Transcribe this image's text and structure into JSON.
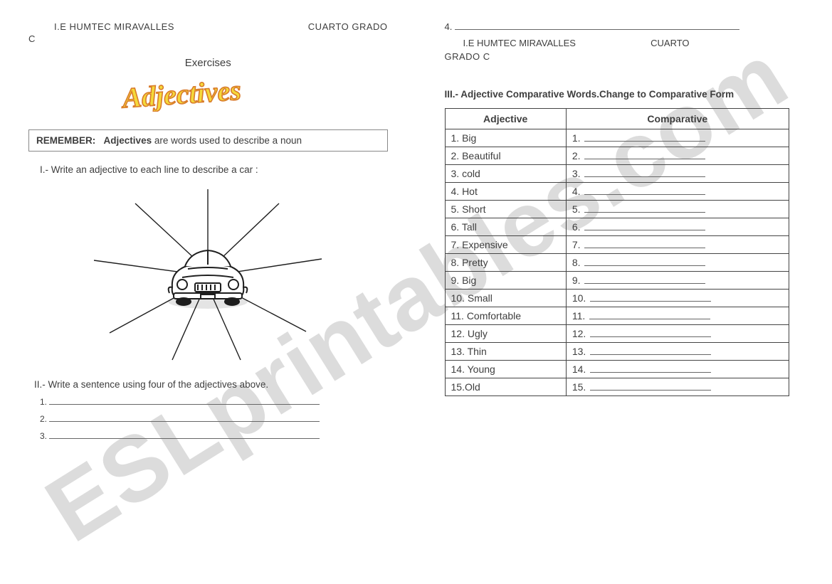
{
  "watermark_text": "ESLprintables.com",
  "left": {
    "header_school": "I.E HUMTEC MIRAVALLES",
    "header_grade": "CUARTO GRADO",
    "header_suffix": "C",
    "exercises_label": "Exercises",
    "wordart_text": "Adjectives",
    "wordart_fill": "#f4d93a",
    "wordart_stroke": "#d97b2b",
    "remember_label": "REMEMBER:",
    "remember_bold": "Adjectives",
    "remember_rest": " are words used to describe a noun",
    "section1_prompt": "I.- Write  an adjective  to each line to describe a car :",
    "section2_prompt": "II.- Write a sentence using four of the adjectives above.",
    "sentence_numbers": [
      "1.",
      "2.",
      "3."
    ],
    "car": {
      "body_stroke": "#1e1e1e",
      "body_fill": "#ffffff",
      "line_stroke": "#1e1e1e"
    }
  },
  "right": {
    "top_number": "4.",
    "header_school": "I.E HUMTEC MIRAVALLES",
    "header_grade": "CUARTO",
    "header_grade2": "GRADO C",
    "section3_title": "III.- Adjective Comparative Words.Change to Comparative Form",
    "table_headers": [
      "Adjective",
      "Comparative"
    ],
    "adjectives": [
      "1. Big",
      "2. Beautiful",
      "3. cold",
      "4. Hot",
      "5. Short",
      "6. Tall",
      "7. Expensive",
      "8. Pretty",
      "9. Big",
      "10. Small",
      "11. Comfortable",
      "12. Ugly",
      "13. Thin",
      "14. Young",
      "15.Old"
    ],
    "comparative_numbers": [
      "1.",
      "2.",
      "3.",
      "4.",
      "5.",
      "6.",
      "7.",
      "8.",
      "9.",
      "10.",
      "11.",
      "12.",
      "13.",
      "14.",
      "15."
    ]
  }
}
